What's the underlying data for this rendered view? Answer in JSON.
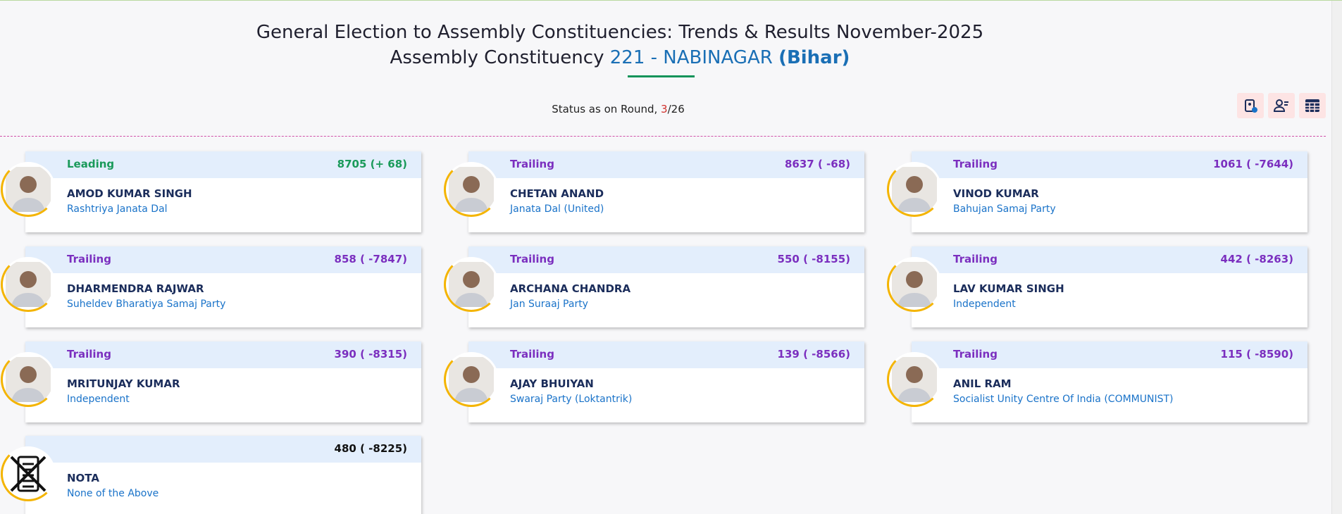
{
  "header": {
    "title": "General Election to Assembly Constituencies: Trends & Results November-2025",
    "subtitle_prefix": "Assembly Constituency",
    "constituency": "221 - NABINAGAR",
    "state": "(Bihar)"
  },
  "status": {
    "label": "Status as on Round,",
    "current": "3",
    "separator": "/",
    "total": "26"
  },
  "candidates": [
    {
      "status": "Leading",
      "votes": "8705 (+ 68)",
      "name": "AMOD KUMAR SINGH",
      "party": "Rashtriya Janata Dal"
    },
    {
      "status": "Trailing",
      "votes": "8637 ( -68)",
      "name": "CHETAN ANAND",
      "party": "Janata Dal (United)"
    },
    {
      "status": "Trailing",
      "votes": "1061 ( -7644)",
      "name": "VINOD KUMAR",
      "party": "Bahujan Samaj Party"
    },
    {
      "status": "Trailing",
      "votes": "858 ( -7847)",
      "name": "DHARMENDRA RAJWAR",
      "party": "Suheldev Bharatiya Samaj Party"
    },
    {
      "status": "Trailing",
      "votes": "550 ( -8155)",
      "name": "ARCHANA CHANDRA",
      "party": "Jan Suraaj Party"
    },
    {
      "status": "Trailing",
      "votes": "442 ( -8263)",
      "name": "LAV KUMAR SINGH",
      "party": "Independent"
    },
    {
      "status": "Trailing",
      "votes": "390 ( -8315)",
      "name": "MRITUNJAY KUMAR",
      "party": "Independent"
    },
    {
      "status": "Trailing",
      "votes": "139 ( -8566)",
      "name": "AJAY BHUIYAN",
      "party": "Swaraj Party (Loktantrik)"
    },
    {
      "status": "Trailing",
      "votes": "115 ( -8590)",
      "name": "ANIL RAM",
      "party": "Socialist Unity Centre Of India (COMMUNIST)"
    },
    {
      "votes": "480 ( -8225)",
      "name": "NOTA",
      "party": "None of the Above"
    }
  ]
}
